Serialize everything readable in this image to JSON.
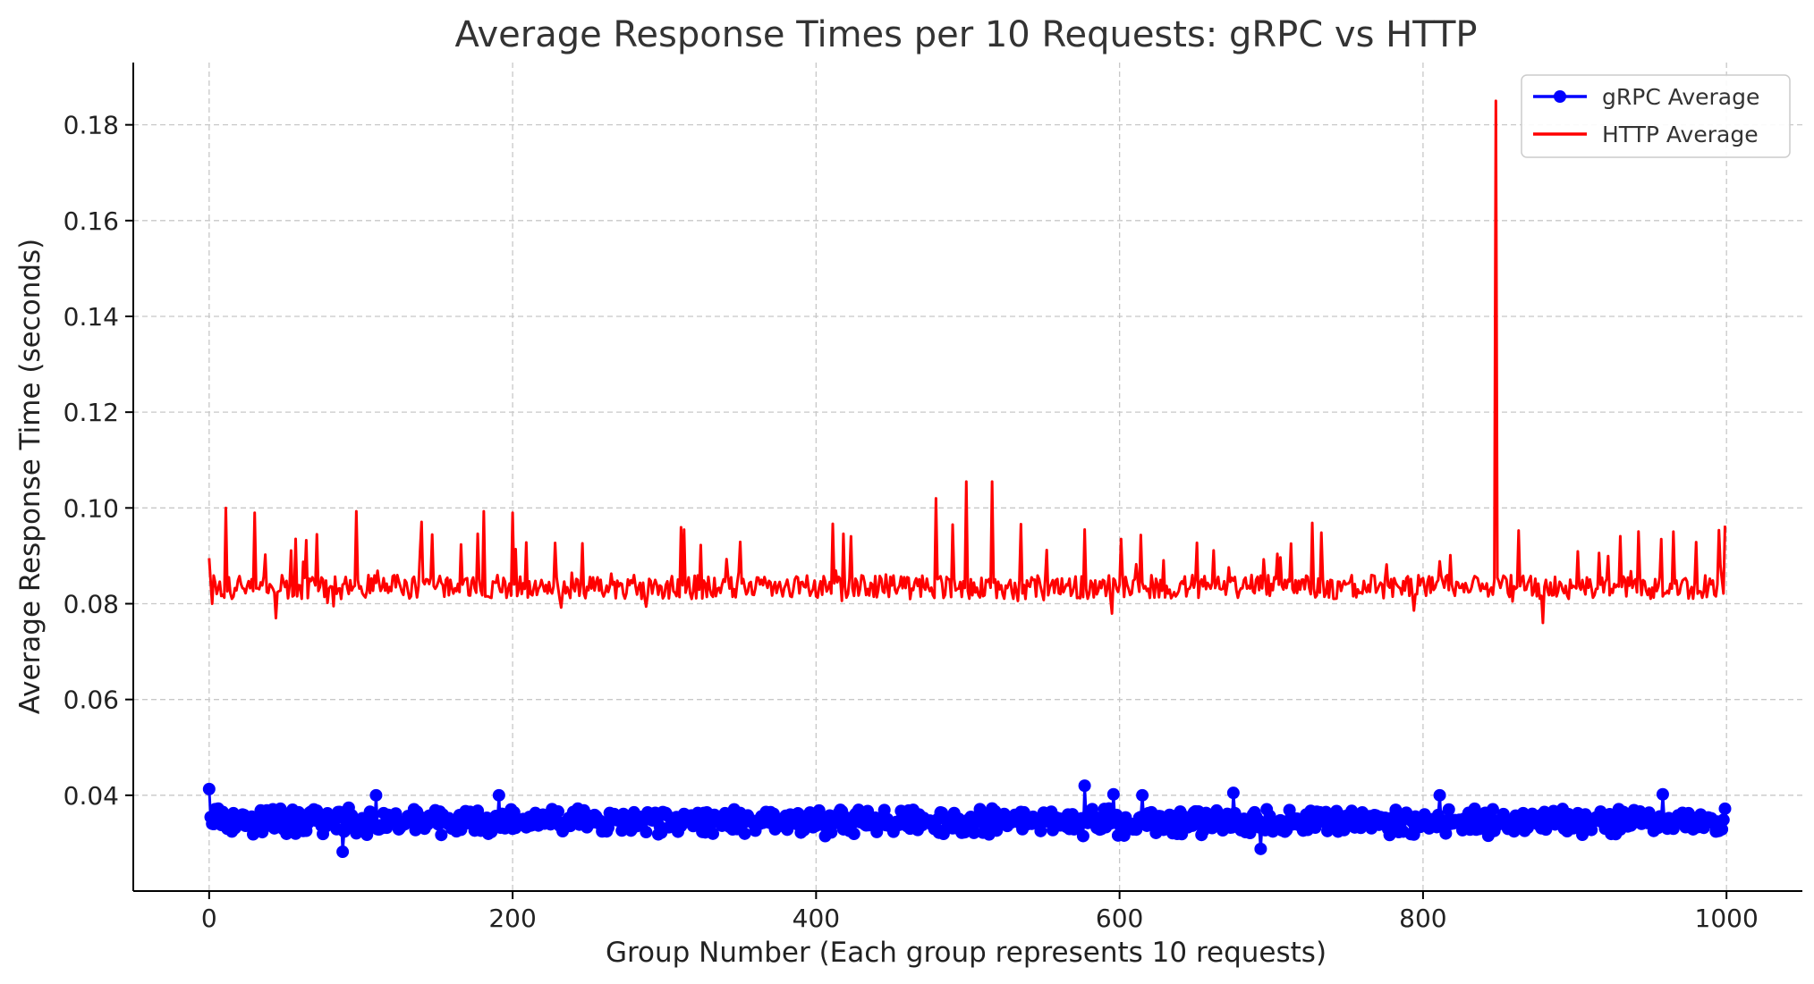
{
  "chart_data": {
    "type": "line",
    "title": "Average Response Times per 10 Requests: gRPC vs HTTP",
    "xlabel": "Group Number (Each group represents 10 requests)",
    "ylabel": "Average Response Time (seconds)",
    "xlim": [
      -50,
      1050
    ],
    "ylim": [
      0.02,
      0.193
    ],
    "xticks": [
      0,
      200,
      400,
      600,
      800,
      1000
    ],
    "xtick_labels": [
      "0",
      "200",
      "400",
      "600",
      "800",
      "1000"
    ],
    "yticks": [
      0.04,
      0.06,
      0.08,
      0.1,
      0.12,
      0.14,
      0.16,
      0.18
    ],
    "ytick_labels": [
      "0.04",
      "0.06",
      "0.08",
      "0.10",
      "0.12",
      "0.14",
      "0.16",
      "0.18"
    ],
    "grid": true,
    "legend_position": "top-right",
    "x": {
      "start": 0,
      "end": 999,
      "step": 1
    },
    "series": [
      {
        "name": "gRPC Average",
        "color": "#0000ff",
        "marker": "circle",
        "values_summary": {
          "baseline": 0.0345,
          "noise": 0.0045
        },
        "notable_points": [
          {
            "x": 0,
            "y": 0.0413
          },
          {
            "x": 88,
            "y": 0.0282
          },
          {
            "x": 110,
            "y": 0.04
          },
          {
            "x": 191,
            "y": 0.04
          },
          {
            "x": 577,
            "y": 0.042
          },
          {
            "x": 596,
            "y": 0.0402
          },
          {
            "x": 615,
            "y": 0.04
          },
          {
            "x": 675,
            "y": 0.0405
          },
          {
            "x": 693,
            "y": 0.0288
          },
          {
            "x": 811,
            "y": 0.04
          },
          {
            "x": 958,
            "y": 0.0402
          },
          {
            "x": 999,
            "y": 0.0372
          }
        ]
      },
      {
        "name": "HTTP Average",
        "color": "#ff0000",
        "marker": "none",
        "values_summary": {
          "baseline": 0.0835,
          "noise": 0.005
        },
        "notable_points": [
          {
            "x": 0,
            "y": 0.0895
          },
          {
            "x": 2,
            "y": 0.08
          },
          {
            "x": 11,
            "y": 0.1
          },
          {
            "x": 30,
            "y": 0.099
          },
          {
            "x": 44,
            "y": 0.077
          },
          {
            "x": 97,
            "y": 0.0993
          },
          {
            "x": 181,
            "y": 0.0993
          },
          {
            "x": 200,
            "y": 0.099
          },
          {
            "x": 479,
            "y": 0.102
          },
          {
            "x": 499,
            "y": 0.1055
          },
          {
            "x": 516,
            "y": 0.1055
          },
          {
            "x": 848,
            "y": 0.185
          },
          {
            "x": 879,
            "y": 0.076
          },
          {
            "x": 999,
            "y": 0.0963
          }
        ]
      }
    ]
  }
}
